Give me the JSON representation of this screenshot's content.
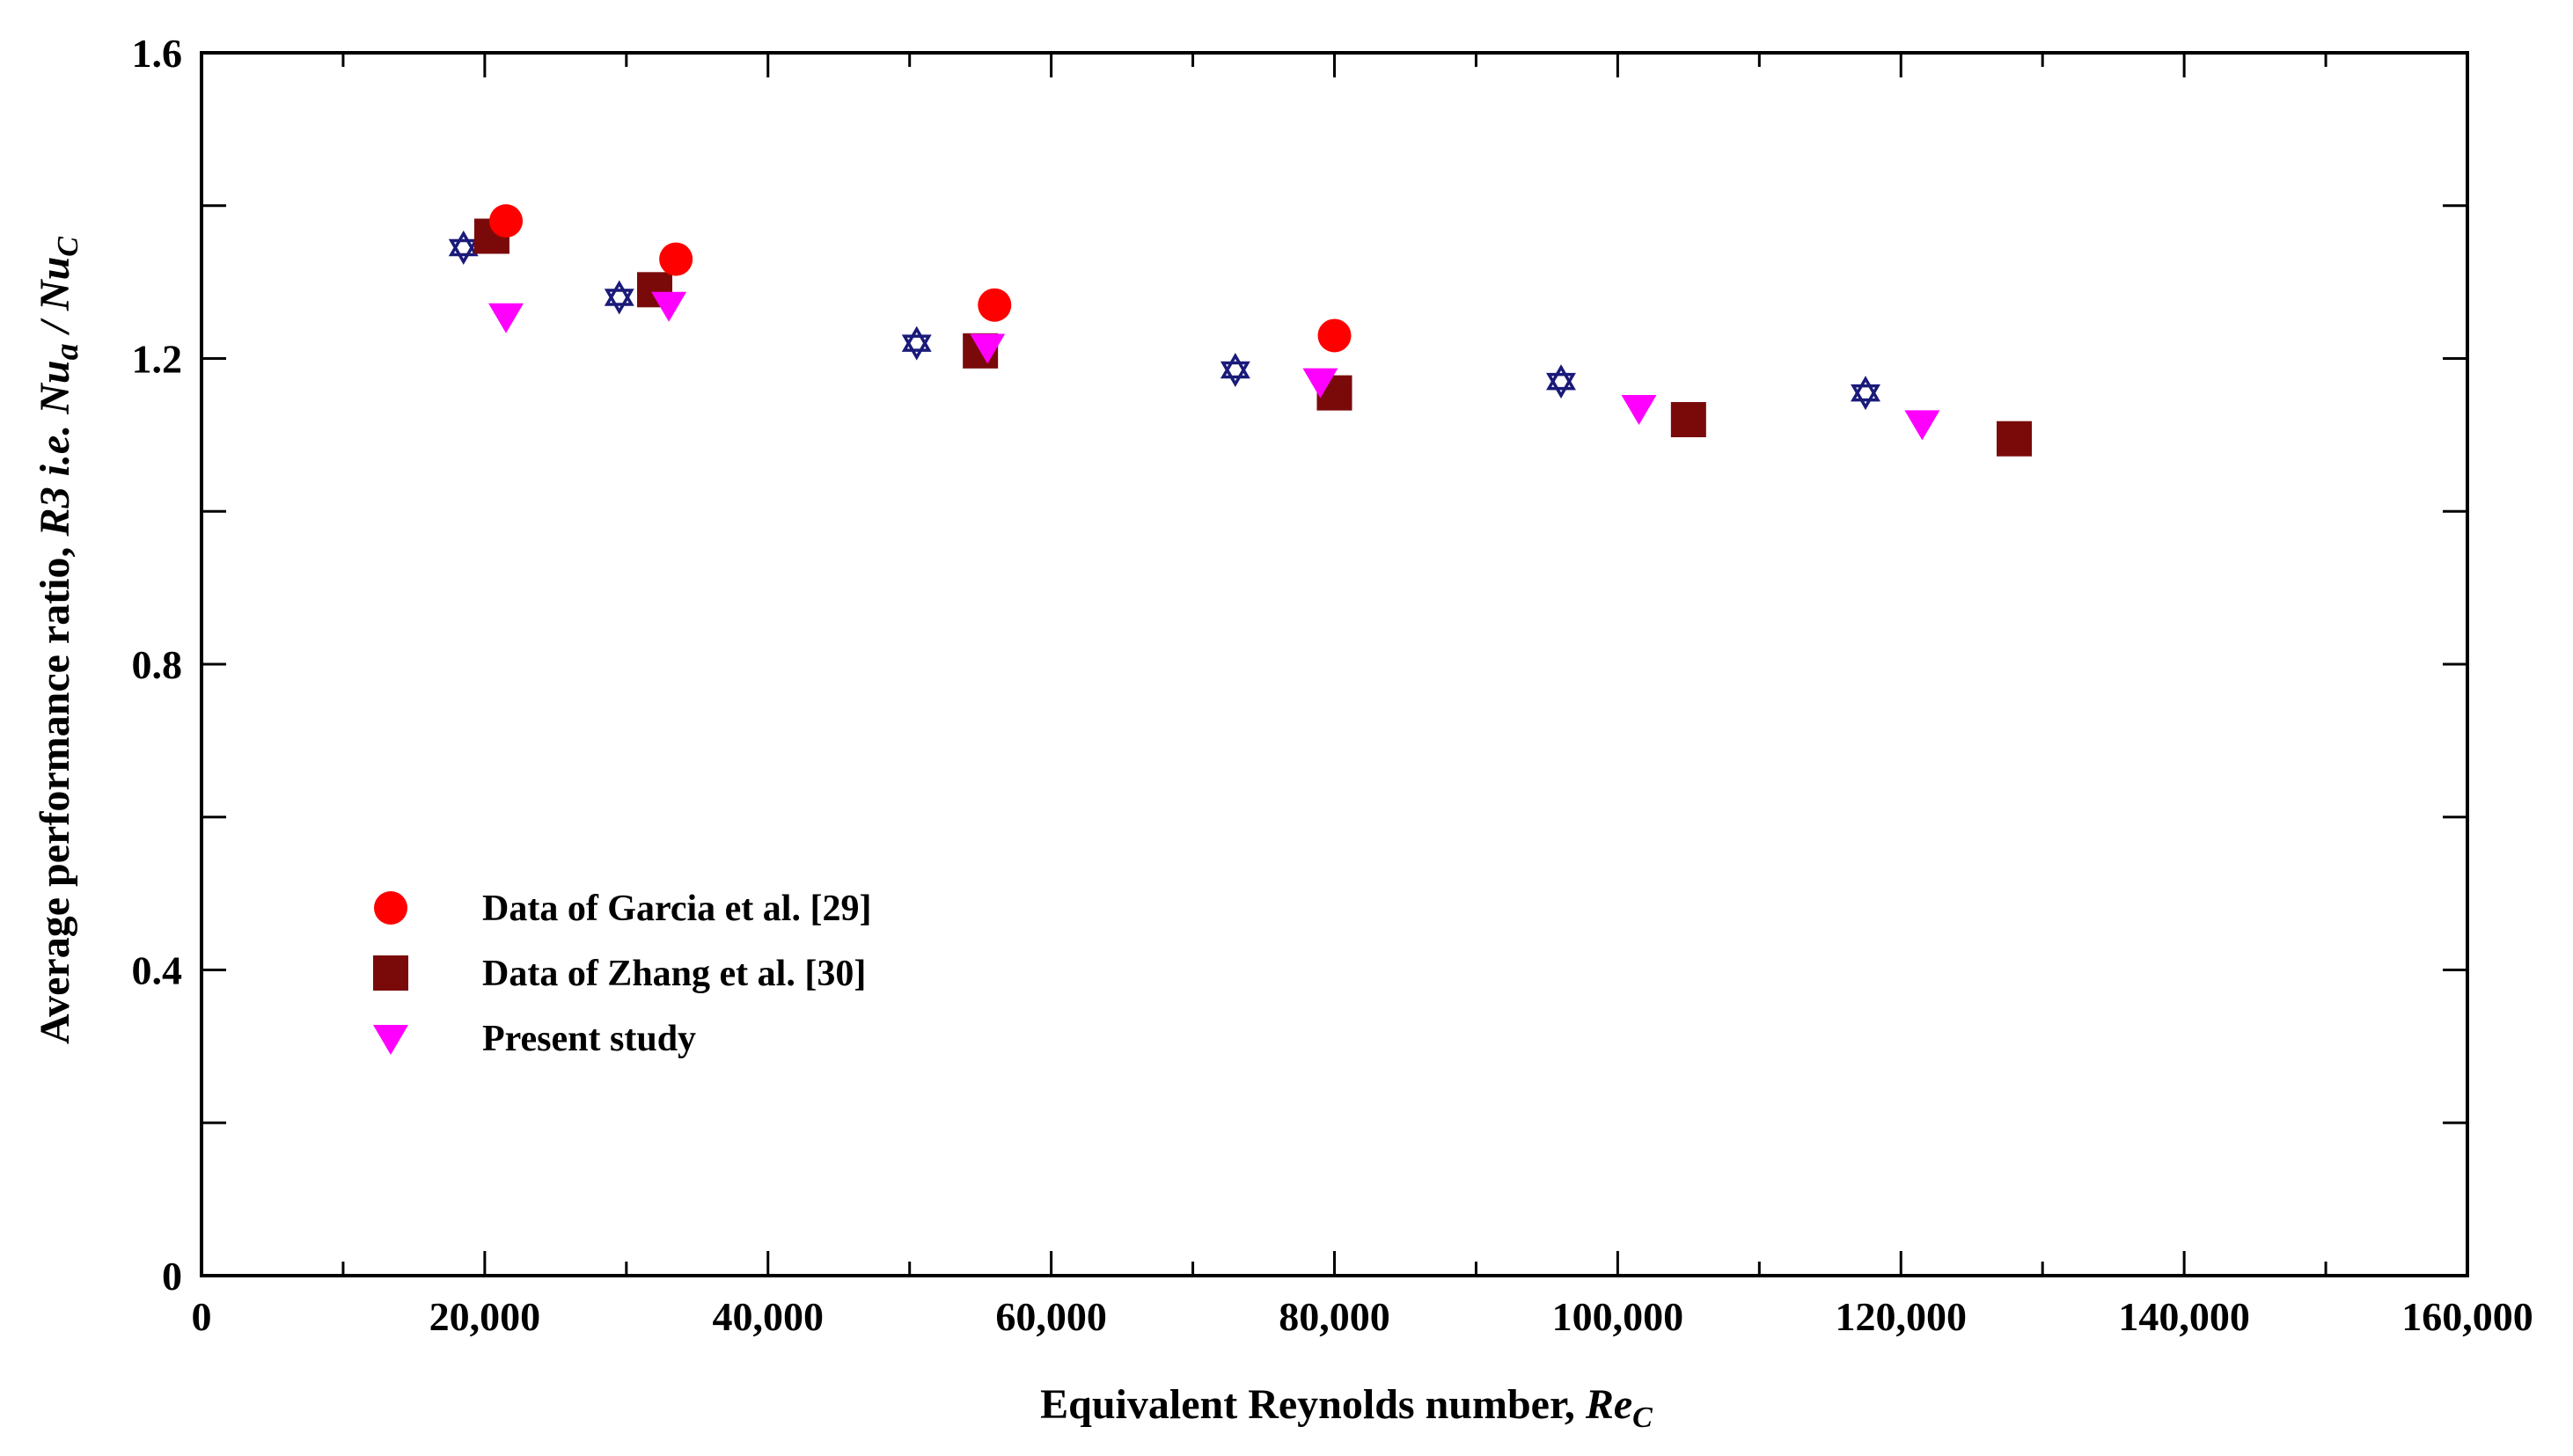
{
  "chart_data": {
    "type": "scatter",
    "title": "",
    "xlabel": "Equivalent Reynolds number, ",
    "xlabel_italic": "Re",
    "xlabel_sub": "C",
    "ylabel": "Average performance ratio, ",
    "ylabel_italic": "R3 i.e. Nu",
    "ylabel_sub_a": "a",
    "ylabel_mid": " / Nu",
    "ylabel_sub_c": "C",
    "xlim": [
      0,
      160000
    ],
    "ylim": [
      0,
      1.6
    ],
    "x_ticks": [
      0,
      20000,
      40000,
      60000,
      80000,
      100000,
      120000,
      140000,
      160000
    ],
    "x_tick_labels": [
      "0",
      "20,000",
      "40,000",
      "60,000",
      "80,000",
      "100,000",
      "120,000",
      "140,000",
      "160,000"
    ],
    "y_ticks": [
      0,
      0.4,
      0.8,
      1.2,
      1.6
    ],
    "y_tick_labels": [
      "0",
      "0.4",
      "0.8",
      "1.2",
      "1.6"
    ],
    "legend_position": "lower-left",
    "series": [
      {
        "name": "Data of Garcia et al. [29]",
        "marker": "circle",
        "color": "#ff0000",
        "in_legend": true,
        "points": [
          [
            21500,
            1.38
          ],
          [
            33500,
            1.33
          ],
          [
            56000,
            1.27
          ],
          [
            80000,
            1.23
          ]
        ]
      },
      {
        "name": "Data of Zhang et al. [30]",
        "marker": "square",
        "color": "#7a0a0a",
        "in_legend": true,
        "points": [
          [
            20500,
            1.36
          ],
          [
            32000,
            1.29
          ],
          [
            55000,
            1.21
          ],
          [
            80000,
            1.155
          ],
          [
            105000,
            1.12
          ],
          [
            128000,
            1.095
          ]
        ]
      },
      {
        "name": "Present study",
        "marker": "triangle-down",
        "color": "#ff00ff",
        "in_legend": true,
        "points": [
          [
            21500,
            1.255
          ],
          [
            33000,
            1.27
          ],
          [
            55500,
            1.215
          ],
          [
            79000,
            1.17
          ],
          [
            101500,
            1.135
          ],
          [
            121500,
            1.115
          ]
        ]
      },
      {
        "name": "",
        "marker": "star",
        "color": "#1a1a7a",
        "in_legend": false,
        "points": [
          [
            18500,
            1.345
          ],
          [
            29500,
            1.28
          ],
          [
            50500,
            1.22
          ],
          [
            73000,
            1.185
          ],
          [
            96000,
            1.17
          ],
          [
            117500,
            1.155
          ]
        ]
      }
    ]
  }
}
